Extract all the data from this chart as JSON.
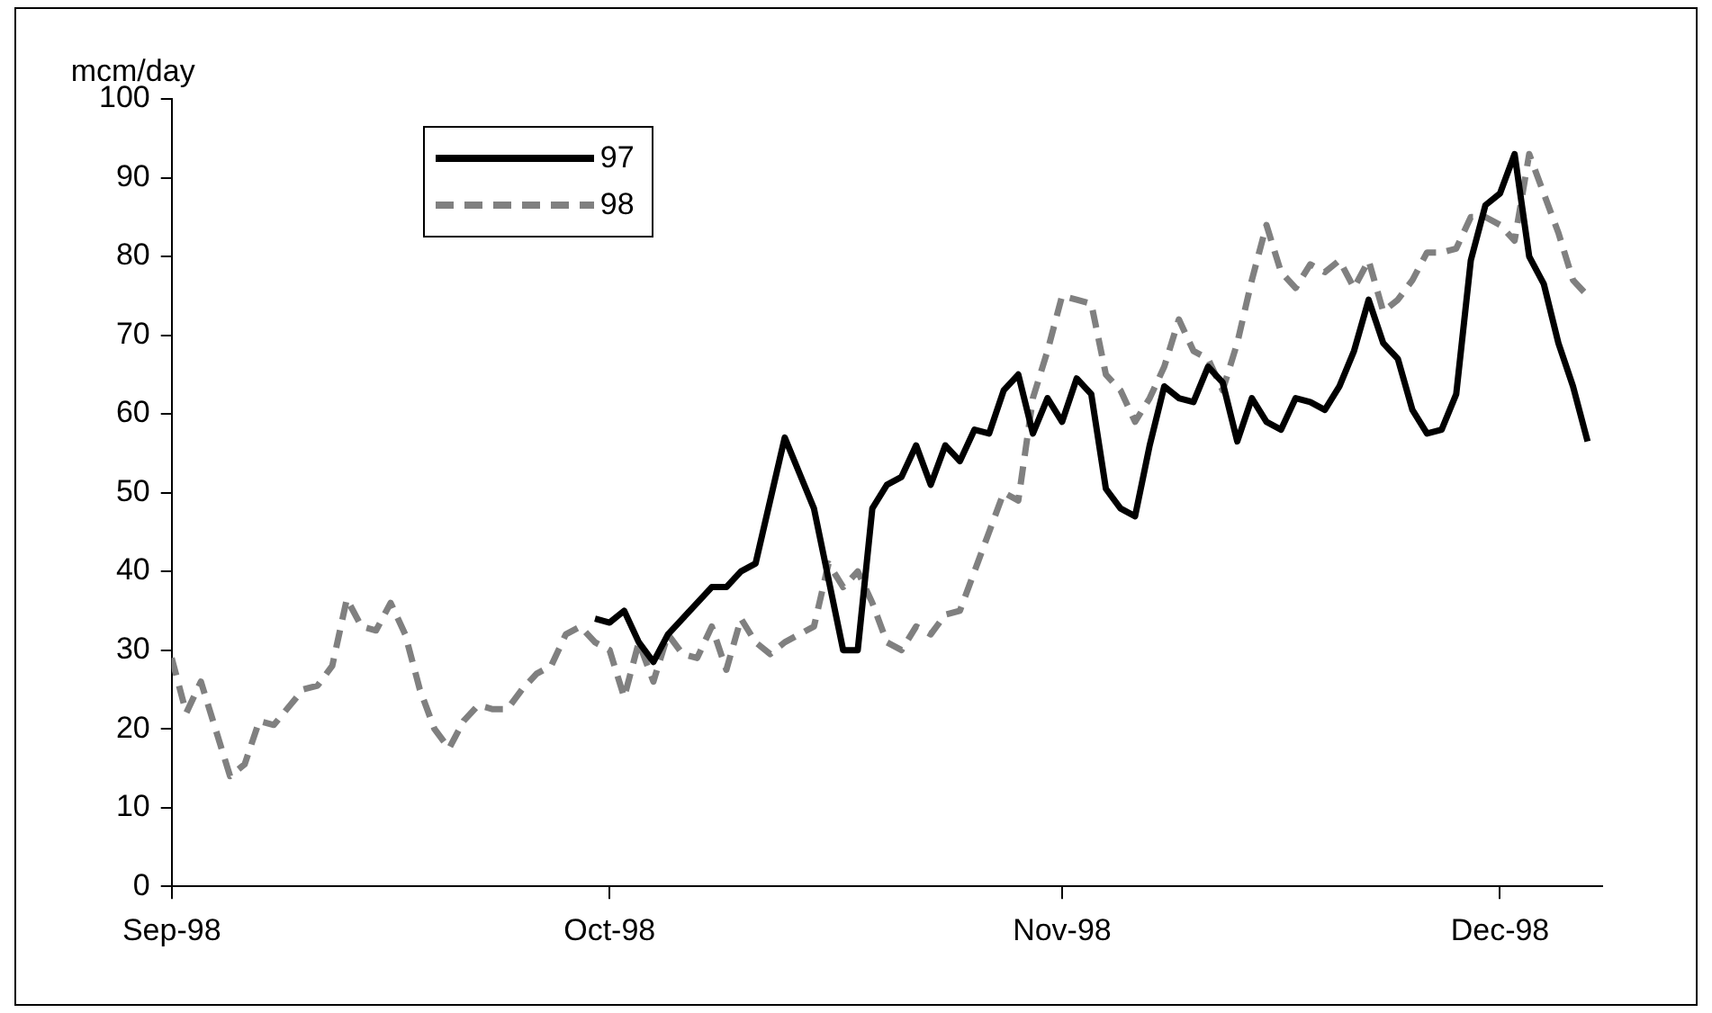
{
  "chart_data": {
    "type": "line",
    "ylabel": "mcm/day",
    "legend": "top left",
    "grid": false,
    "marker": "none",
    "xlim": [
      "1998-09-01",
      "1998-12-08"
    ],
    "xticks": [
      {
        "value": "1998-09-01",
        "label": "Sep-98"
      },
      {
        "value": "1998-10-01",
        "label": "Oct-98"
      },
      {
        "value": "1998-11-01",
        "label": "Nov-98"
      },
      {
        "value": "1998-12-01",
        "label": "Dec-98"
      }
    ],
    "ylim": [
      0,
      100
    ],
    "yticks": [
      0,
      10,
      20,
      30,
      40,
      50,
      60,
      70,
      80,
      90,
      100
    ],
    "series": [
      {
        "name": "97",
        "color": "#000000",
        "line_style": "solid",
        "x": [
          "1998-09-30",
          "1998-10-01",
          "1998-10-02",
          "1998-10-03",
          "1998-10-04",
          "1998-10-05",
          "1998-10-06",
          "1998-10-07",
          "1998-10-08",
          "1998-10-09",
          "1998-10-10",
          "1998-10-11",
          "1998-10-12",
          "1998-10-13",
          "1998-10-14",
          "1998-10-15",
          "1998-10-16",
          "1998-10-17",
          "1998-10-18",
          "1998-10-19",
          "1998-10-20",
          "1998-10-21",
          "1998-10-22",
          "1998-10-23",
          "1998-10-24",
          "1998-10-25",
          "1998-10-26",
          "1998-10-27",
          "1998-10-28",
          "1998-10-29",
          "1998-10-30",
          "1998-10-31",
          "1998-11-01",
          "1998-11-02",
          "1998-11-03",
          "1998-11-04",
          "1998-11-05",
          "1998-11-06",
          "1998-11-07",
          "1998-11-08",
          "1998-11-09",
          "1998-11-10",
          "1998-11-11",
          "1998-11-12",
          "1998-11-13",
          "1998-11-14",
          "1998-11-15",
          "1998-11-16",
          "1998-11-17",
          "1998-11-18",
          "1998-11-19",
          "1998-11-20",
          "1998-11-21",
          "1998-11-22",
          "1998-11-23",
          "1998-11-24",
          "1998-11-25",
          "1998-11-26",
          "1998-11-27",
          "1998-11-28",
          "1998-11-29",
          "1998-11-30",
          "1998-12-01",
          "1998-12-02",
          "1998-12-03",
          "1998-12-04",
          "1998-12-05",
          "1998-12-06",
          "1998-12-07"
        ],
        "values": [
          34,
          33.5,
          35,
          31,
          28.5,
          32,
          34,
          36,
          38,
          38,
          40,
          41,
          49,
          57,
          52.5,
          48,
          39,
          30,
          30,
          48,
          51,
          52,
          56,
          51,
          56,
          54,
          58,
          57.5,
          63,
          65,
          57.5,
          62,
          59,
          64.5,
          62.5,
          50.5,
          48,
          47,
          56,
          63.5,
          62,
          61.5,
          66,
          64,
          56.5,
          62,
          59,
          58,
          62,
          61.5,
          60.5,
          63.5,
          68,
          74.5,
          69,
          67,
          60.5,
          57.5,
          58,
          62.5,
          79.5,
          86.5,
          88,
          93,
          80,
          76.5,
          69,
          63.5,
          56.5
        ]
      },
      {
        "name": "98",
        "color": "#808080",
        "line_style": "dashed",
        "x": [
          "1998-09-01",
          "1998-09-02",
          "1998-09-03",
          "1998-09-05",
          "1998-09-06",
          "1998-09-07",
          "1998-09-08",
          "1998-09-10",
          "1998-09-11",
          "1998-09-12",
          "1998-09-13",
          "1998-09-14",
          "1998-09-15",
          "1998-09-16",
          "1998-09-17",
          "1998-09-18",
          "1998-09-19",
          "1998-09-20",
          "1998-09-21",
          "1998-09-22",
          "1998-09-23",
          "1998-09-24",
          "1998-09-25",
          "1998-09-26",
          "1998-09-27",
          "1998-09-28",
          "1998-09-29",
          "1998-09-30",
          "1998-10-01",
          "1998-10-02",
          "1998-10-03",
          "1998-10-04",
          "1998-10-05",
          "1998-10-06",
          "1998-10-07",
          "1998-10-08",
          "1998-10-09",
          "1998-10-10",
          "1998-10-11",
          "1998-10-12",
          "1998-10-13",
          "1998-10-14",
          "1998-10-15",
          "1998-10-16",
          "1998-10-17",
          "1998-10-18",
          "1998-10-19",
          "1998-10-20",
          "1998-10-21",
          "1998-10-22",
          "1998-10-23",
          "1998-10-24",
          "1998-10-25",
          "1998-10-26",
          "1998-10-27",
          "1998-10-28",
          "1998-10-29",
          "1998-10-30",
          "1998-10-31",
          "1998-11-01",
          "1998-11-02",
          "1998-11-03",
          "1998-11-04",
          "1998-11-05",
          "1998-11-06",
          "1998-11-07",
          "1998-11-08",
          "1998-11-09",
          "1998-11-10",
          "1998-11-11",
          "1998-11-12",
          "1998-11-13",
          "1998-11-14",
          "1998-11-15",
          "1998-11-16",
          "1998-11-17",
          "1998-11-18",
          "1998-11-19",
          "1998-11-20",
          "1998-11-21",
          "1998-11-22",
          "1998-11-23",
          "1998-11-24",
          "1998-11-25",
          "1998-11-26",
          "1998-11-27",
          "1998-11-28",
          "1998-11-29",
          "1998-11-30",
          "1998-12-01",
          "1998-12-02",
          "1998-12-03",
          "1998-12-04",
          "1998-12-05",
          "1998-12-06",
          "1998-12-07"
        ],
        "values": [
          29,
          22,
          26,
          14,
          15.5,
          21,
          20.5,
          25,
          25.5,
          28,
          36.5,
          33,
          32.5,
          36,
          32,
          25,
          20,
          17.5,
          21,
          23,
          22.5,
          22.5,
          25,
          27,
          28,
          32,
          33,
          31,
          30,
          24,
          31,
          26,
          32,
          29.5,
          29,
          33,
          27.5,
          34,
          31,
          29.5,
          31,
          32,
          33,
          41,
          38,
          40,
          36,
          31,
          30,
          33,
          32,
          34.5,
          35,
          40,
          45,
          50,
          49,
          62,
          68,
          75,
          74.5,
          74,
          65,
          63,
          59,
          62,
          66,
          72,
          68,
          67,
          63,
          69,
          77,
          84,
          78,
          76,
          79,
          78,
          79.5,
          76,
          79.5,
          73,
          74.5,
          77,
          80.5,
          80.5,
          81,
          85,
          85,
          84,
          82,
          93,
          88,
          83,
          77,
          75
        ]
      }
    ]
  }
}
